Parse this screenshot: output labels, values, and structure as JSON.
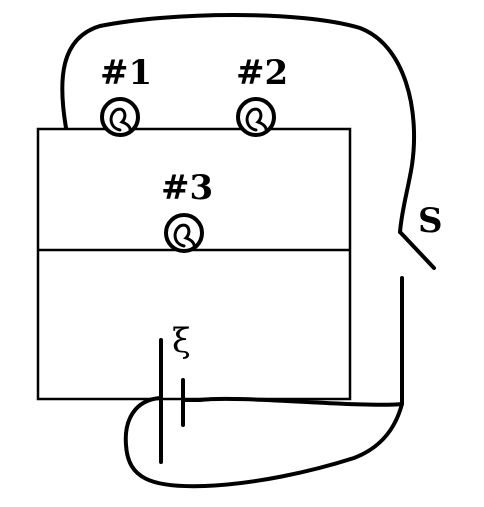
{
  "diagram": {
    "bulbs": [
      {
        "id": "bulb-1",
        "label": "#1"
      },
      {
        "id": "bulb-2",
        "label": "#2"
      },
      {
        "id": "bulb-3",
        "label": "#3"
      }
    ],
    "switch_label": "S",
    "emf_label": "ξ"
  }
}
